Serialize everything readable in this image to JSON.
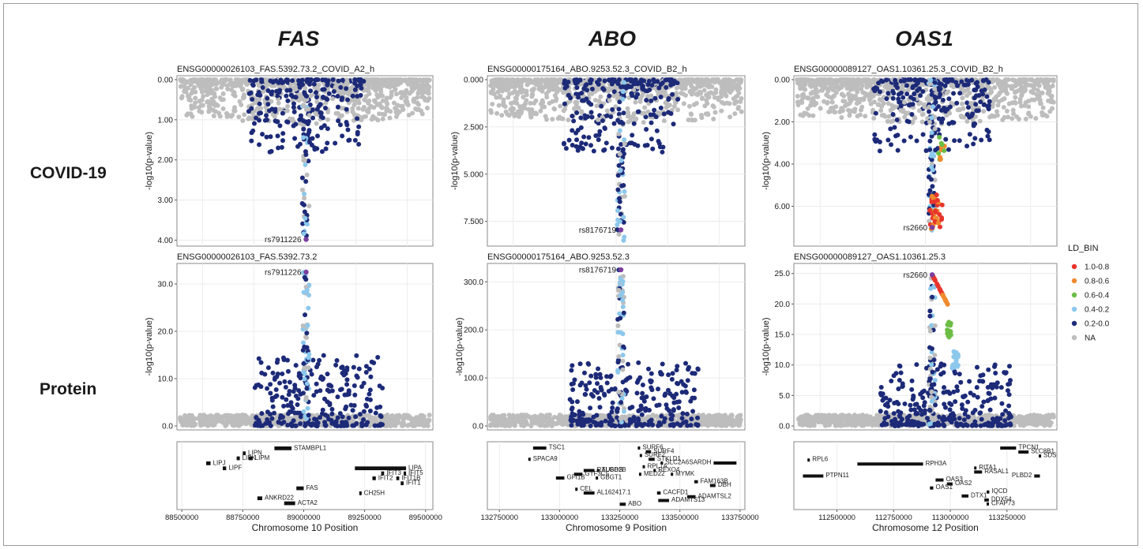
{
  "column_titles": [
    "FAS",
    "ABO",
    "OAS1"
  ],
  "row_labels": [
    "COVID-19",
    "Protein"
  ],
  "legend": {
    "title": "LD_BIN",
    "items": [
      {
        "label": "1.0-0.8",
        "color": "#e8352c"
      },
      {
        "label": "0.8-0.6",
        "color": "#f08a2e"
      },
      {
        "label": "0.6-0.4",
        "color": "#6cbd45"
      },
      {
        "label": "0.4-0.2",
        "color": "#8cc8ec"
      },
      {
        "label": "0.2-0.0",
        "color": "#1c2a78"
      },
      {
        "label": "NA",
        "color": "#bdbdbd"
      }
    ]
  },
  "chart_data": [
    {
      "type": "scatter",
      "title": "ENSG00000026103_FAS.5392.73.2_COVID_A2_h",
      "ylabel": "-log10(p-value)",
      "y_ticks": [
        "0.00",
        "1.00",
        "2.00",
        "3.00",
        "4.00"
      ],
      "ylim": [
        0,
        4.05
      ],
      "y_inverted": true,
      "xlim": [
        88480000,
        89530000
      ],
      "lead_snp": {
        "label": "rs7911226",
        "x": 89010000,
        "y": 3.98
      },
      "peak": {
        "x": 89010000,
        "max_y": 3.98
      }
    },
    {
      "type": "scatter",
      "title": "ENSG00000175164_ABO.9253.52.3_COVID_B2_h",
      "ylabel": "-log10(p-value)",
      "y_ticks": [
        "0.000",
        "2.500",
        "5.000",
        "7.500"
      ],
      "ylim": [
        0,
        8.6
      ],
      "y_inverted": true,
      "xlim": [
        132700000,
        133770000
      ],
      "lead_snp": {
        "label": "rs8176719",
        "x": 133255000,
        "y": 7.95
      },
      "peak": {
        "x": 133255000,
        "max_y": 8.6
      }
    },
    {
      "type": "scatter",
      "title": "ENSG00000089127_OAS1.10361.25.3_COVID_B2_h",
      "ylabel": "-log10(p-value)",
      "y_ticks": [
        "0.00",
        "2.00",
        "4.00",
        "6.00"
      ],
      "ylim": [
        0,
        7.7
      ],
      "y_inverted": true,
      "xlim": [
        112310000,
        113470000
      ],
      "lead_snp": {
        "label": "rs2660",
        "x": 112920000,
        "y": 7.0
      },
      "peak": {
        "x": 112920000,
        "max_y": 7.3
      }
    },
    {
      "type": "scatter",
      "title": "ENSG00000026103_FAS.5392.73.2",
      "ylabel": "-log10(p-value)",
      "y_ticks": [
        "0.0",
        "10.0",
        "20.0",
        "30.0"
      ],
      "ylim": [
        0,
        33.5
      ],
      "y_inverted": false,
      "xlim": [
        88480000,
        89530000
      ],
      "lead_snp": {
        "label": "rs7911226",
        "x": 89010000,
        "y": 32.5
      },
      "peak": {
        "x": 89010000,
        "max_y": 32.5
      }
    },
    {
      "type": "scatter",
      "title": "ENSG00000175164_ABO.9253.52.3",
      "ylabel": "-log10(p-value)",
      "y_ticks": [
        "0.0",
        "100.0",
        "200.0",
        "300.0"
      ],
      "ylim": [
        0,
        330
      ],
      "y_inverted": false,
      "xlim": [
        132700000,
        133770000
      ],
      "lead_snp": {
        "label": "rs8176719",
        "x": 133255000,
        "y": 325
      },
      "peak": {
        "x": 133255000,
        "max_y": 325
      }
    },
    {
      "type": "scatter",
      "title": "ENSG00000089127_OAS1.10361.25.3",
      "ylabel": "-log10(p-value)",
      "y_ticks": [
        "0.0",
        "5.0",
        "10.0",
        "15.0",
        "20.0",
        "25.0"
      ],
      "ylim": [
        0,
        26
      ],
      "y_inverted": false,
      "xlim": [
        112310000,
        113470000
      ],
      "lead_snp": {
        "label": "rs2660",
        "x": 112920000,
        "y": 24.8
      },
      "peak": {
        "x": 112920000,
        "max_y": 24.8
      }
    }
  ],
  "gene_tracks": [
    {
      "xlabel": "Chromosome 10 Position",
      "x_ticks": [
        "88500000",
        "88750000",
        "89000000",
        "89250000",
        "89500000"
      ],
      "x_tick_values": [
        88500000,
        88750000,
        89000000,
        89250000,
        89500000
      ],
      "xlim": [
        88480000,
        89530000
      ],
      "genes": [
        {
          "name": "STAMBPL1",
          "start": 88880000,
          "end": 88950000,
          "row": 0
        },
        {
          "name": "LIPN",
          "start": 88750000,
          "end": 88762000,
          "row": 1
        },
        {
          "name": "LIPK",
          "start": 88725000,
          "end": 88738000,
          "row": 2
        },
        {
          "name": "LIPM",
          "start": 88775000,
          "end": 88790000,
          "row": 2
        },
        {
          "name": "LIPJ",
          "start": 88600000,
          "end": 88618000,
          "row": 3
        },
        {
          "name": "LIPF",
          "start": 88668000,
          "end": 88682000,
          "row": 4
        },
        {
          "name": "LIPA",
          "start": 89210000,
          "end": 89420000,
          "row": 4
        },
        {
          "name": "IFIT5",
          "start": 89410000,
          "end": 89420000,
          "row": 5
        },
        {
          "name": "IFIT3",
          "start": 89318000,
          "end": 89330000,
          "row": 5
        },
        {
          "name": "IFIT2",
          "start": 89282000,
          "end": 89296000,
          "row": 6
        },
        {
          "name": "IFIT1B",
          "start": 89380000,
          "end": 89392000,
          "row": 6
        },
        {
          "name": "IFIT1",
          "start": 89398000,
          "end": 89410000,
          "row": 7
        },
        {
          "name": "FAS",
          "start": 88970000,
          "end": 89000000,
          "row": 8
        },
        {
          "name": "CH25H",
          "start": 89228000,
          "end": 89232000,
          "row": 9
        },
        {
          "name": "ANKRD22",
          "start": 88810000,
          "end": 88830000,
          "row": 10
        },
        {
          "name": "ACTA2",
          "start": 88920000,
          "end": 88965000,
          "row": 11
        }
      ]
    },
    {
      "xlabel": "Chromosome 9 Position",
      "x_ticks": [
        "132750000",
        "133000000",
        "133250000",
        "133500000",
        "133750000"
      ],
      "x_tick_values": [
        132750000,
        133000000,
        133250000,
        133500000,
        133750000
      ],
      "xlim": [
        132700000,
        133770000
      ],
      "genes": [
        {
          "name": "TSC1",
          "start": 132890000,
          "end": 132945000,
          "row": 0
        },
        {
          "name": "SURF6",
          "start": 133325000,
          "end": 133330000,
          "row": 0
        },
        {
          "name": "SURF4",
          "start": 133358000,
          "end": 133380000,
          "row": 1
        },
        {
          "name": "SURF2",
          "start": 133333000,
          "end": 133342000,
          "row": 2
        },
        {
          "name": "STKLD1",
          "start": 133370000,
          "end": 133395000,
          "row": 3
        },
        {
          "name": "SPACA9",
          "start": 132870000,
          "end": 132875000,
          "row": 3
        },
        {
          "name": "SLC2A6",
          "start": 133420000,
          "end": 133428000,
          "row": 4
        },
        {
          "name": "SARDH",
          "start": 133640000,
          "end": 133735000,
          "row": 4
        },
        {
          "name": "RPL7A",
          "start": 133345000,
          "end": 133350000,
          "row": 5
        },
        {
          "name": "REXO4",
          "start": 133390000,
          "end": 133398000,
          "row": 6
        },
        {
          "name": "RALGDS",
          "start": 133100000,
          "end": 133145000,
          "row": 6
        },
        {
          "name": "TUBB2B",
          "start": 133155000,
          "end": 133162000,
          "row": 6
        },
        {
          "name": "MED22",
          "start": 133330000,
          "end": 133337000,
          "row": 7
        },
        {
          "name": "MYMK",
          "start": 133462000,
          "end": 133470000,
          "row": 7
        },
        {
          "name": "GTF3C5",
          "start": 133060000,
          "end": 133095000,
          "row": 7
        },
        {
          "name": "GFI1B",
          "start": 132985000,
          "end": 133020000,
          "row": 8
        },
        {
          "name": "GBGT1",
          "start": 133150000,
          "end": 133160000,
          "row": 8
        },
        {
          "name": "FAM163B",
          "start": 133560000,
          "end": 133575000,
          "row": 9
        },
        {
          "name": "DBH",
          "start": 133625000,
          "end": 133648000,
          "row": 10
        },
        {
          "name": "CEL",
          "start": 133065000,
          "end": 133075000,
          "row": 11
        },
        {
          "name": "CACFD1",
          "start": 133405000,
          "end": 133420000,
          "row": 12
        },
        {
          "name": "AL162417.1",
          "start": 133100000,
          "end": 133145000,
          "row": 12
        },
        {
          "name": "ADAMTSL2",
          "start": 133530000,
          "end": 133565000,
          "row": 13
        },
        {
          "name": "ADAMTS13",
          "start": 133410000,
          "end": 133455000,
          "row": 14
        },
        {
          "name": "ABO",
          "start": 133250000,
          "end": 133275000,
          "row": 15
        }
      ]
    },
    {
      "xlabel": "Chromosome 12 Position",
      "x_ticks": [
        "112500000",
        "112750000",
        "113000000",
        "113250000"
      ],
      "x_tick_values": [
        112500000,
        112750000,
        113000000,
        113250000
      ],
      "xlim": [
        112310000,
        113470000
      ],
      "genes": [
        {
          "name": "TPCN1",
          "start": 113220000,
          "end": 113290000,
          "row": 0
        },
        {
          "name": "SLC8B1",
          "start": 113300000,
          "end": 113345000,
          "row": 1
        },
        {
          "name": "SDS",
          "start": 113390000,
          "end": 113400000,
          "row": 2
        },
        {
          "name": "RPL6",
          "start": 112370000,
          "end": 112375000,
          "row": 3
        },
        {
          "name": "RPH3A",
          "start": 112590000,
          "end": 112880000,
          "row": 4
        },
        {
          "name": "RITA1",
          "start": 113105000,
          "end": 113115000,
          "row": 5
        },
        {
          "name": "RASAL1",
          "start": 113105000,
          "end": 113140000,
          "row": 6
        },
        {
          "name": "PTPN11",
          "start": 112350000,
          "end": 112440000,
          "row": 7
        },
        {
          "name": "PLBD2",
          "start": 113370000,
          "end": 113395000,
          "row": 7
        },
        {
          "name": "OAS3",
          "start": 112935000,
          "end": 112970000,
          "row": 8
        },
        {
          "name": "OAS2",
          "start": 112985000,
          "end": 113010000,
          "row": 9
        },
        {
          "name": "OAS1",
          "start": 112910000,
          "end": 112925000,
          "row": 10
        },
        {
          "name": "IQCD",
          "start": 113160000,
          "end": 113172000,
          "row": 11
        },
        {
          "name": "DTX1",
          "start": 113050000,
          "end": 113080000,
          "row": 12
        },
        {
          "name": "DDX54",
          "start": 113150000,
          "end": 113170000,
          "row": 13
        },
        {
          "name": "CFAP73",
          "start": 113160000,
          "end": 113165000,
          "row": 14
        }
      ]
    }
  ]
}
